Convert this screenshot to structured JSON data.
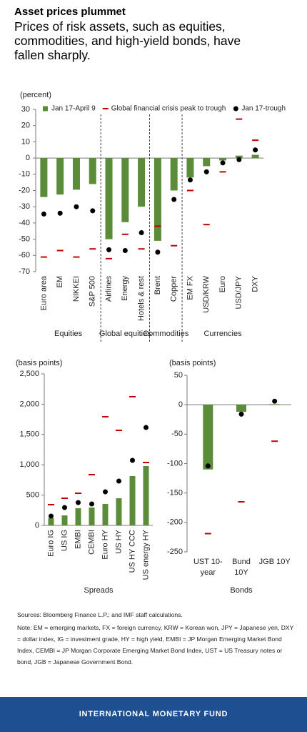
{
  "header": {
    "title": "Asset prices plummet",
    "subtitle": "Prices of risk assets, such as equities, commodities, and high-yield bonds, have fallen sharply."
  },
  "chart_data": [
    {
      "type": "bar",
      "y_label": "(percent)",
      "legend": "top",
      "grid": false,
      "ylim": [
        -70,
        30
      ],
      "yticks": [
        -70,
        -60,
        -50,
        -40,
        -30,
        -20,
        -10,
        0,
        10,
        20,
        30
      ],
      "groups": [
        {
          "name": "Equities",
          "categories": [
            "Euro area",
            "EM",
            "NIKKEI",
            "S&P 500"
          ]
        },
        {
          "name": "Global equities",
          "categories": [
            "Airlines",
            "Energy",
            "Hotels & rest"
          ]
        },
        {
          "name": "Commodities",
          "categories": [
            "Brent",
            "Copper"
          ]
        },
        {
          "name": "Currencies",
          "categories": [
            "EM FX",
            "USD/KRW",
            "Euro",
            "USD/JPY",
            "DXY"
          ]
        }
      ],
      "series": [
        {
          "name": "Jan 17-April 9",
          "mark": "bar",
          "color": "#5b8c3a",
          "values": [
            -24,
            -22.5,
            -19.5,
            -16,
            -50,
            -39.5,
            -30,
            -51,
            -20,
            -12,
            -5,
            -1.5,
            1.5,
            2
          ]
        },
        {
          "name": "Global financial crisis peak to trough",
          "mark": "dash",
          "color": "#c00000",
          "values": [
            -61,
            -57,
            -61,
            -56,
            -62,
            -47,
            -56,
            -42,
            -54,
            -20,
            -41,
            -8.5,
            24,
            11
          ]
        },
        {
          "name": "Jan 17-trough",
          "mark": "dot",
          "color": "#000000",
          "values": [
            -34.5,
            -34,
            -30,
            -32.5,
            -56.5,
            -57,
            -46,
            -58,
            -25.5,
            -13.5,
            -8.5,
            -3,
            -1,
            5
          ]
        }
      ]
    },
    {
      "type": "bar",
      "y_label": "(basis points)",
      "grid": false,
      "ylim": [
        0,
        2500
      ],
      "yticks": [
        0,
        500,
        {
          "value": 1000,
          "label": "1,000"
        },
        {
          "value": 1500,
          "label": "1,500"
        },
        {
          "value": 2000,
          "label": "2,000"
        },
        {
          "value": 2500,
          "label": "2,500"
        }
      ],
      "groups": [
        {
          "name": "Spreads",
          "categories": [
            "Euro IG",
            "US IG",
            "EMBI",
            "CEMBI",
            "Euro HY",
            "US HY",
            "US HY CCC",
            "US energy HY"
          ]
        }
      ],
      "series": [
        {
          "mark": "bar",
          "color": "#5b8c3a",
          "values": [
            118,
            165,
            283,
            295,
            354,
            448,
            814,
            979
          ]
        },
        {
          "mark": "dash",
          "color": "#c00000",
          "values": [
            342,
            448,
            530,
            837,
            1792,
            1568,
            2123,
            1038
          ]
        },
        {
          "mark": "dot",
          "color": "#000000",
          "values": [
            153,
            295,
            377,
            354,
            554,
            731,
            1073,
            1615
          ]
        }
      ]
    },
    {
      "type": "bar",
      "y_label": "(basis points)",
      "grid": false,
      "ylim": [
        -250,
        50
      ],
      "yticks": [
        -250,
        -200,
        -150,
        -100,
        -50,
        0,
        50
      ],
      "groups": [
        {
          "name": "Bonds",
          "categories": [
            "UST 10-year",
            "Bund 10Y",
            "JGB 10Y"
          ]
        }
      ],
      "series": [
        {
          "mark": "bar",
          "color": "#5b8c3a",
          "values": [
            -110,
            -12,
            1
          ]
        },
        {
          "mark": "dash",
          "color": "#c00000",
          "values": [
            -219,
            -165,
            -62
          ]
        },
        {
          "mark": "dot",
          "color": "#000000",
          "values": [
            -104,
            -16,
            6
          ]
        }
      ]
    }
  ],
  "footer": {
    "sources": "Sources: Bloomberg Finance L.P.; and IMF staff calculations.",
    "note": "Note: EM = emerging markets, FX = foreign currency, KRW = Korean won, JPY = Japanese yen, DXY = dollar index, IG = investment grade, HY = high yield, EMBI = JP Morgan Emerging Market Bond Index, CEMBI = JP Morgan Corporate Emerging Market Bond Index, UST = US Treasury notes or bond, JGB = Japanese Government Bond.",
    "org": "INTERNATIONAL MONETARY FUND"
  }
}
